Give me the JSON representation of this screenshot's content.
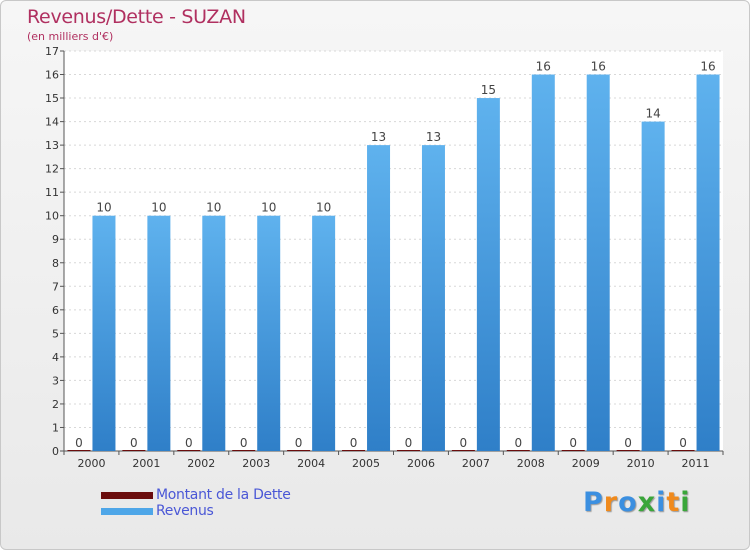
{
  "header": {
    "title": "Revenus/Dette - SUZAN",
    "subtitle": "(en milliers d'€)"
  },
  "chart_data": {
    "type": "bar",
    "title": "Revenus/Dette - SUZAN",
    "ylabel": "(en milliers d'€)",
    "xlabel": "",
    "categories": [
      "2000",
      "2001",
      "2002",
      "2003",
      "2004",
      "2005",
      "2006",
      "2007",
      "2008",
      "2009",
      "2010",
      "2011"
    ],
    "series": [
      {
        "name": "Montant de la Dette",
        "values": [
          0,
          0,
          0,
          0,
          0,
          0,
          0,
          0,
          0,
          0,
          0,
          0
        ],
        "color": "#6b0d0d"
      },
      {
        "name": "Revenus",
        "values": [
          10,
          10,
          10,
          10,
          10,
          13,
          13,
          15,
          16,
          16,
          14,
          16
        ],
        "color": "#4ea6e8"
      }
    ],
    "ylim": [
      0,
      17
    ],
    "yticks": [
      "0",
      "1",
      "2",
      "3",
      "4",
      "5",
      "6",
      "7",
      "8",
      "9",
      "10",
      "11",
      "12",
      "13",
      "14",
      "15",
      "16",
      "17"
    ],
    "grid": true,
    "legend_position": "bottom-left"
  },
  "legend": {
    "items": [
      {
        "label": "Montant de la Dette",
        "color": "#6b0d0d"
      },
      {
        "label": "Revenus",
        "color": "#4ea6e8"
      }
    ]
  },
  "logo": {
    "letters": [
      "P",
      "r",
      "o",
      "x",
      "i",
      "t",
      "i"
    ],
    "colors": [
      "#3b8fe0",
      "#f08a1c",
      "#3b8fe0",
      "#3aa63a",
      "#3b8fe0",
      "#f08a1c",
      "#3aa63a"
    ]
  }
}
